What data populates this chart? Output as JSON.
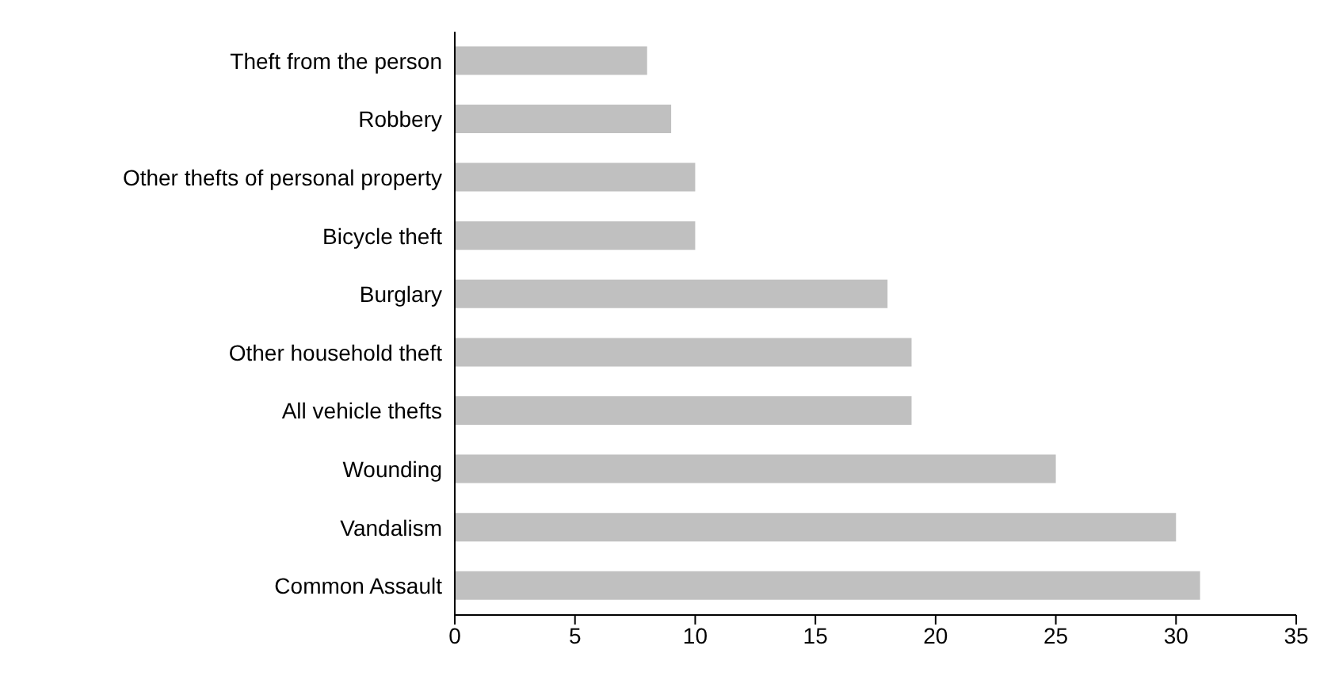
{
  "chart_data": {
    "type": "bar",
    "orientation": "horizontal",
    "categories": [
      "Theft from the person",
      "Robbery",
      "Other thefts of personal property",
      "Bicycle theft",
      "Burglary",
      "Other household theft",
      "All vehicle thefts",
      "Wounding",
      "Vandalism",
      "Common Assault"
    ],
    "values": [
      8,
      9,
      10,
      10,
      18,
      19,
      19,
      25,
      30,
      31
    ],
    "color": "#c0c0c0",
    "xlim": [
      0,
      35
    ],
    "xticks": [
      0,
      5,
      10,
      15,
      20,
      25,
      30,
      35
    ],
    "grid": false,
    "legend": false
  }
}
